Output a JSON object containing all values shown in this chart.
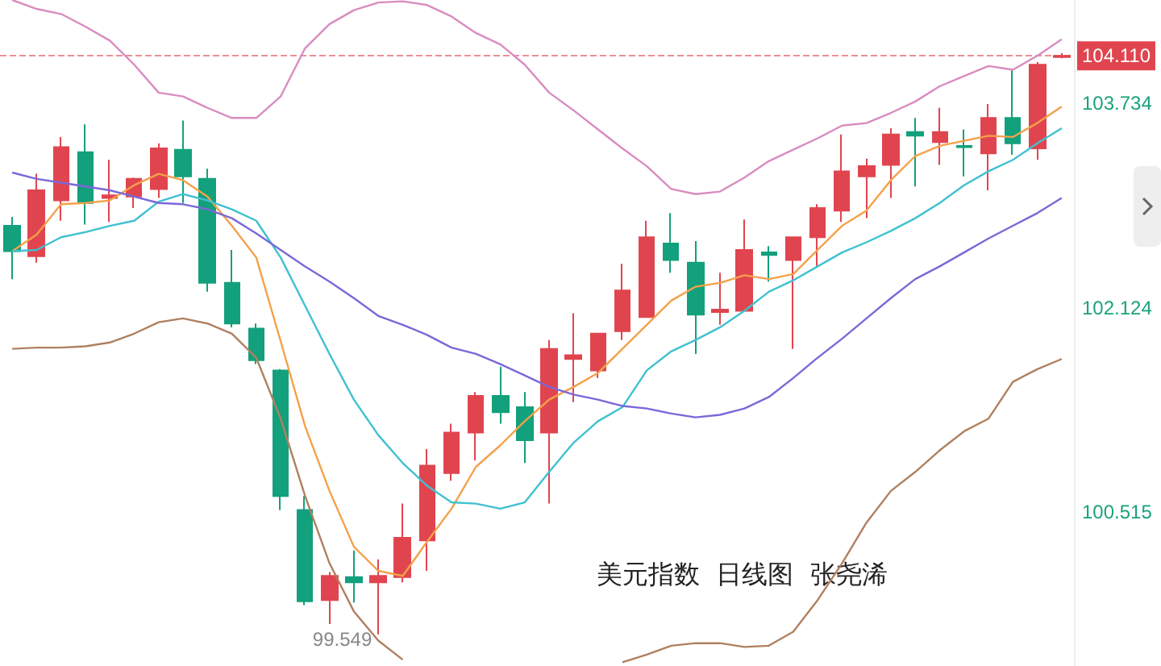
{
  "chart_data": [
    {
      "type": "candlestick",
      "title": "美元指数  日线图  张尧浠",
      "categories": [
        null,
        null,
        null,
        null,
        null,
        null,
        null,
        null,
        null,
        null,
        null,
        null,
        null,
        null,
        null,
        null,
        null,
        null,
        null,
        null,
        null,
        null,
        null,
        null,
        null,
        null,
        null,
        null,
        null,
        null,
        null,
        null,
        null,
        null,
        null,
        null,
        null,
        null,
        null,
        null,
        null,
        null,
        null,
        null
      ],
      "colors": [
        "#13a07c",
        "#e0454f",
        "#e0454f",
        "#13a07c",
        "#e0454f",
        "#e0454f",
        "#e0454f",
        "#13a07c",
        "#13a07c",
        "#13a07c",
        "#13a07c",
        "#13a07c",
        "#13a07c",
        "#e0454f",
        "#13a07c",
        "#e0454f",
        "#e0454f",
        "#e0454f",
        "#e0454f",
        "#e0454f",
        "#13a07c",
        "#13a07c",
        "#e0454f",
        "#e0454f",
        "#e0454f",
        "#e0454f",
        "#e0454f",
        "#13a07c",
        "#13a07c",
        "#e0454f",
        "#e0454f",
        "#13a07c",
        "#e0454f",
        "#e0454f",
        "#e0454f",
        "#e0454f",
        "#e0454f",
        "#13a07c",
        "#e0454f",
        "#13a07c",
        "#e0454f",
        "#13a07c",
        "#e0454f",
        "#e0454f"
      ],
      "ohlc": [
        [
          102.77,
          102.84,
          102.35,
          102.57
        ],
        [
          102.53,
          103.18,
          102.48,
          103.05
        ],
        [
          102.97,
          103.47,
          102.81,
          103.39
        ],
        [
          103.35,
          103.57,
          102.78,
          102.95
        ],
        [
          102.99,
          103.29,
          102.8,
          103.01
        ],
        [
          103.0,
          103.15,
          102.91,
          103.14
        ],
        [
          103.06,
          103.42,
          102.99,
          103.38
        ],
        [
          103.37,
          103.6,
          102.95,
          103.16
        ],
        [
          103.14,
          103.22,
          102.25,
          102.32
        ],
        [
          102.32,
          102.58,
          101.97,
          102.0
        ],
        [
          101.96,
          102.0,
          101.68,
          101.71
        ],
        [
          101.63,
          101.64,
          100.53,
          100.64
        ],
        [
          100.53,
          100.64,
          99.78,
          99.81
        ],
        [
          99.82,
          100.04,
          99.63,
          100.01
        ],
        [
          100.0,
          100.21,
          99.8,
          99.96
        ],
        [
          99.96,
          100.14,
          99.549,
          100.01
        ],
        [
          100.0,
          100.58,
          99.96,
          100.31
        ],
        [
          100.29,
          101.01,
          100.05,
          100.88
        ],
        [
          100.82,
          101.21,
          100.76,
          101.14
        ],
        [
          101.14,
          101.46,
          100.92,
          101.43
        ],
        [
          101.43,
          101.66,
          101.21,
          101.3
        ],
        [
          101.34,
          101.46,
          100.9,
          101.08
        ],
        [
          101.14,
          101.87,
          100.58,
          101.8
        ],
        [
          101.72,
          102.08,
          101.38,
          101.75
        ],
        [
          101.63,
          101.92,
          101.57,
          101.92
        ],
        [
          101.94,
          102.47,
          101.87,
          102.26
        ],
        [
          102.05,
          102.81,
          102.05,
          102.68
        ],
        [
          102.63,
          102.87,
          102.4,
          102.5
        ],
        [
          102.48,
          102.65,
          101.76,
          102.07
        ],
        [
          102.09,
          102.4,
          101.99,
          102.11
        ],
        [
          102.1,
          102.82,
          102.1,
          102.58
        ],
        [
          102.56,
          102.61,
          102.33,
          102.54
        ],
        [
          102.5,
          102.68,
          101.8,
          102.68
        ],
        [
          102.68,
          102.94,
          102.44,
          102.91
        ],
        [
          102.89,
          103.49,
          102.8,
          103.2
        ],
        [
          103.16,
          103.3,
          102.83,
          103.24
        ],
        [
          103.25,
          103.54,
          102.99,
          103.49
        ],
        [
          103.51,
          103.62,
          103.08,
          103.48
        ],
        [
          103.43,
          103.7,
          103.25,
          103.51
        ],
        [
          103.4,
          103.53,
          103.16,
          103.39
        ],
        [
          103.34,
          103.73,
          103.05,
          103.62
        ],
        [
          103.62,
          104.0,
          103.33,
          103.42
        ],
        [
          103.38,
          104.06,
          103.29,
          104.04
        ],
        [
          104.1,
          104.13,
          104.09,
          104.11
        ]
      ],
      "ylim": [
        99.3,
        104.55
      ],
      "yticks": [
        100.515,
        102.124,
        103.734,
        {
          "value": 104.11,
          "label": "104.110"
        }
      ],
      "ref_lines": [
        {
          "axis": "y",
          "value": 104.11,
          "color": "#e0454f",
          "line_style": "dashed"
        }
      ],
      "annotations": [
        "99.549"
      ],
      "tick_labels": "y"
    },
    {
      "type": "line",
      "categories": [
        null,
        null,
        null,
        null,
        null,
        null,
        null,
        null,
        null,
        null,
        null,
        null,
        null,
        null,
        null,
        null,
        null,
        null,
        null,
        null,
        null,
        null,
        null,
        null,
        null,
        null,
        null,
        null,
        null,
        null,
        null,
        null,
        null,
        null,
        null,
        null,
        null,
        null,
        null,
        null,
        null,
        null,
        null,
        null
      ],
      "series": [
        {
          "color": "#f5a04a",
          "values": [
            102.57,
            102.7,
            102.94,
            102.95,
            102.97,
            103.09,
            103.18,
            103.13,
            103.0,
            102.77,
            102.52,
            101.86,
            101.19,
            100.68,
            100.24,
            100.05,
            100.01,
            100.28,
            100.54,
            100.87,
            101.04,
            101.23,
            101.4,
            101.5,
            101.61,
            101.8,
            101.99,
            102.18,
            102.29,
            102.32,
            102.38,
            102.35,
            102.39,
            102.58,
            102.77,
            102.89,
            103.13,
            103.32,
            103.4,
            103.44,
            103.48,
            103.47,
            103.58,
            103.71
          ]
        },
        {
          "color": "#3fc1d0",
          "values": [
            102.57,
            102.58,
            102.68,
            102.72,
            102.77,
            102.81,
            102.96,
            103.02,
            102.97,
            102.9,
            102.81,
            102.52,
            102.14,
            101.76,
            101.4,
            101.12,
            100.9,
            100.72,
            100.59,
            100.58,
            100.54,
            100.59,
            100.83,
            101.06,
            101.23,
            101.34,
            101.63,
            101.78,
            101.87,
            101.97,
            102.1,
            102.25,
            102.34,
            102.45,
            102.56,
            102.64,
            102.73,
            102.83,
            102.95,
            103.09,
            103.2,
            103.29,
            103.42,
            103.54
          ]
        },
        {
          "color": "#7b68d9",
          "values": [
            103.19,
            103.14,
            103.11,
            103.08,
            103.05,
            103.0,
            102.95,
            102.94,
            102.9,
            102.83,
            102.71,
            102.58,
            102.45,
            102.33,
            102.2,
            102.06,
            101.99,
            101.91,
            101.81,
            101.76,
            101.68,
            101.59,
            101.5,
            101.44,
            101.4,
            101.35,
            101.33,
            101.29,
            101.26,
            101.28,
            101.33,
            101.42,
            101.57,
            101.73,
            101.88,
            102.04,
            102.2,
            102.35,
            102.45,
            102.56,
            102.67,
            102.77,
            102.87,
            102.99
          ]
        },
        {
          "color": "#d98cc0",
          "values": [
            104.55,
            104.48,
            104.44,
            104.34,
            104.23,
            104.04,
            103.82,
            103.79,
            103.7,
            103.62,
            103.62,
            103.79,
            104.17,
            104.36,
            104.47,
            104.53,
            104.54,
            104.51,
            104.42,
            104.29,
            104.2,
            104.04,
            103.82,
            103.68,
            103.53,
            103.38,
            103.24,
            103.06,
            103.02,
            103.04,
            103.15,
            103.28,
            103.37,
            103.46,
            103.56,
            103.58,
            103.66,
            103.75,
            103.87,
            103.95,
            104.03,
            104.0,
            104.11,
            104.24
          ]
        },
        {
          "color": "#b08060",
          "values": [
            101.8,
            101.81,
            101.81,
            101.82,
            101.85,
            101.92,
            102.01,
            102.04,
            102.0,
            101.92,
            101.73,
            101.25,
            100.64,
            100.11,
            99.73,
            99.5,
            99.35,
            null,
            null,
            null,
            null,
            null,
            null,
            null,
            null,
            99.33,
            99.39,
            99.46,
            99.48,
            99.48,
            99.45,
            99.46,
            99.57,
            99.82,
            100.11,
            100.43,
            100.68,
            100.83,
            101.0,
            101.15,
            101.25,
            101.54,
            101.64,
            101.72
          ]
        }
      ],
      "ylim": [
        99.3,
        104.55
      ],
      "marker": "none",
      "line_style": "solid",
      "tick_labels": false
    }
  ]
}
